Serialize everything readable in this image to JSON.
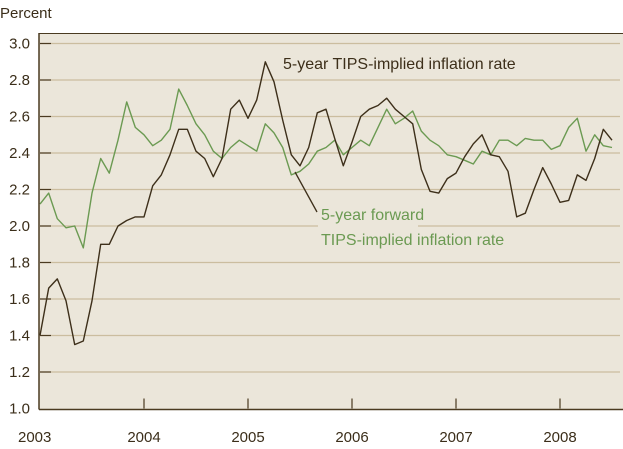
{
  "chart_data": {
    "type": "line",
    "ylabel": "Percent",
    "ylim": [
      1.0,
      3.0
    ],
    "yticks": [
      "1.0",
      "1.2",
      "1.4",
      "1.6",
      "1.8",
      "2.0",
      "2.2",
      "2.4",
      "2.6",
      "2.8",
      "3.0"
    ],
    "xticks": [
      "2003",
      "2004",
      "2005",
      "2006",
      "2007",
      "2008"
    ],
    "x_start": "2003-01",
    "x_frequency": "monthly",
    "grid": true,
    "colors": {
      "background": "#ebe6da",
      "grid": "#cbbd9f",
      "axis": "#4a3a20"
    },
    "series": [
      {
        "name": "5-year TIPS-implied inflation rate",
        "color": "#3d2f1a",
        "values": [
          1.4,
          1.66,
          1.71,
          1.59,
          1.35,
          1.37,
          1.59,
          1.9,
          1.9,
          2.0,
          2.03,
          2.05,
          2.05,
          2.22,
          2.28,
          2.39,
          2.53,
          2.53,
          2.41,
          2.37,
          2.27,
          2.37,
          2.64,
          2.69,
          2.59,
          2.69,
          2.9,
          2.79,
          2.58,
          2.39,
          2.33,
          2.43,
          2.62,
          2.64,
          2.48,
          2.33,
          2.46,
          2.6,
          2.64,
          2.66,
          2.7,
          2.64,
          2.6,
          2.56,
          2.31,
          2.19,
          2.18,
          2.26,
          2.29,
          2.38,
          2.45,
          2.5,
          2.39,
          2.38,
          2.3,
          2.05,
          2.07,
          2.2,
          2.32,
          2.23,
          2.13,
          2.14,
          2.28,
          2.25,
          2.37,
          2.53,
          2.47
        ]
      },
      {
        "name": "5-year forward TIPS-implied inflation rate",
        "name_lines": [
          "5-year forward",
          "TIPS-implied inflation rate"
        ],
        "color": "#6b9a52",
        "values": [
          2.12,
          2.18,
          2.04,
          1.99,
          2.0,
          1.88,
          2.18,
          2.37,
          2.29,
          2.47,
          2.68,
          2.54,
          2.5,
          2.44,
          2.47,
          2.53,
          2.75,
          2.66,
          2.56,
          2.5,
          2.41,
          2.37,
          2.43,
          2.47,
          2.44,
          2.41,
          2.56,
          2.51,
          2.43,
          2.28,
          2.3,
          2.34,
          2.41,
          2.43,
          2.47,
          2.39,
          2.43,
          2.47,
          2.44,
          2.54,
          2.64,
          2.56,
          2.59,
          2.63,
          2.52,
          2.47,
          2.44,
          2.39,
          2.38,
          2.36,
          2.34,
          2.41,
          2.39,
          2.47,
          2.47,
          2.44,
          2.48,
          2.47,
          2.47,
          2.42,
          2.44,
          2.54,
          2.59,
          2.41,
          2.5,
          2.44,
          2.43
        ]
      }
    ]
  }
}
